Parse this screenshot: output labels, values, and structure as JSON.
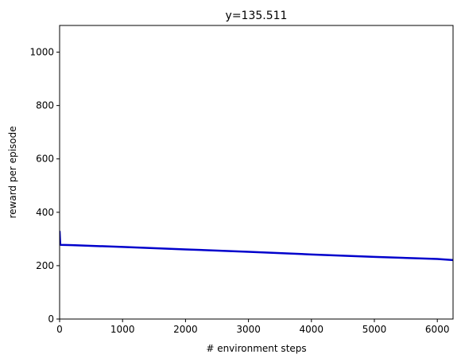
{
  "chart_data": {
    "type": "line",
    "title": "y=135.511",
    "xlabel": "# environment steps",
    "ylabel": "reward per episode",
    "xlim": [
      0,
      6250
    ],
    "ylim": [
      0,
      1100
    ],
    "xticks": [
      0,
      1000,
      2000,
      3000,
      4000,
      5000,
      6000
    ],
    "yticks": [
      0,
      200,
      400,
      600,
      800,
      1000
    ],
    "grid": false,
    "series": [
      {
        "name": "reward",
        "color": "#0000cc",
        "x": [
          0,
          10,
          20,
          200,
          1000,
          2000,
          3000,
          4000,
          5000,
          6000,
          6250
        ],
        "y": [
          330,
          280,
          278,
          277,
          270,
          261,
          252,
          242,
          233,
          225,
          221
        ]
      }
    ]
  }
}
